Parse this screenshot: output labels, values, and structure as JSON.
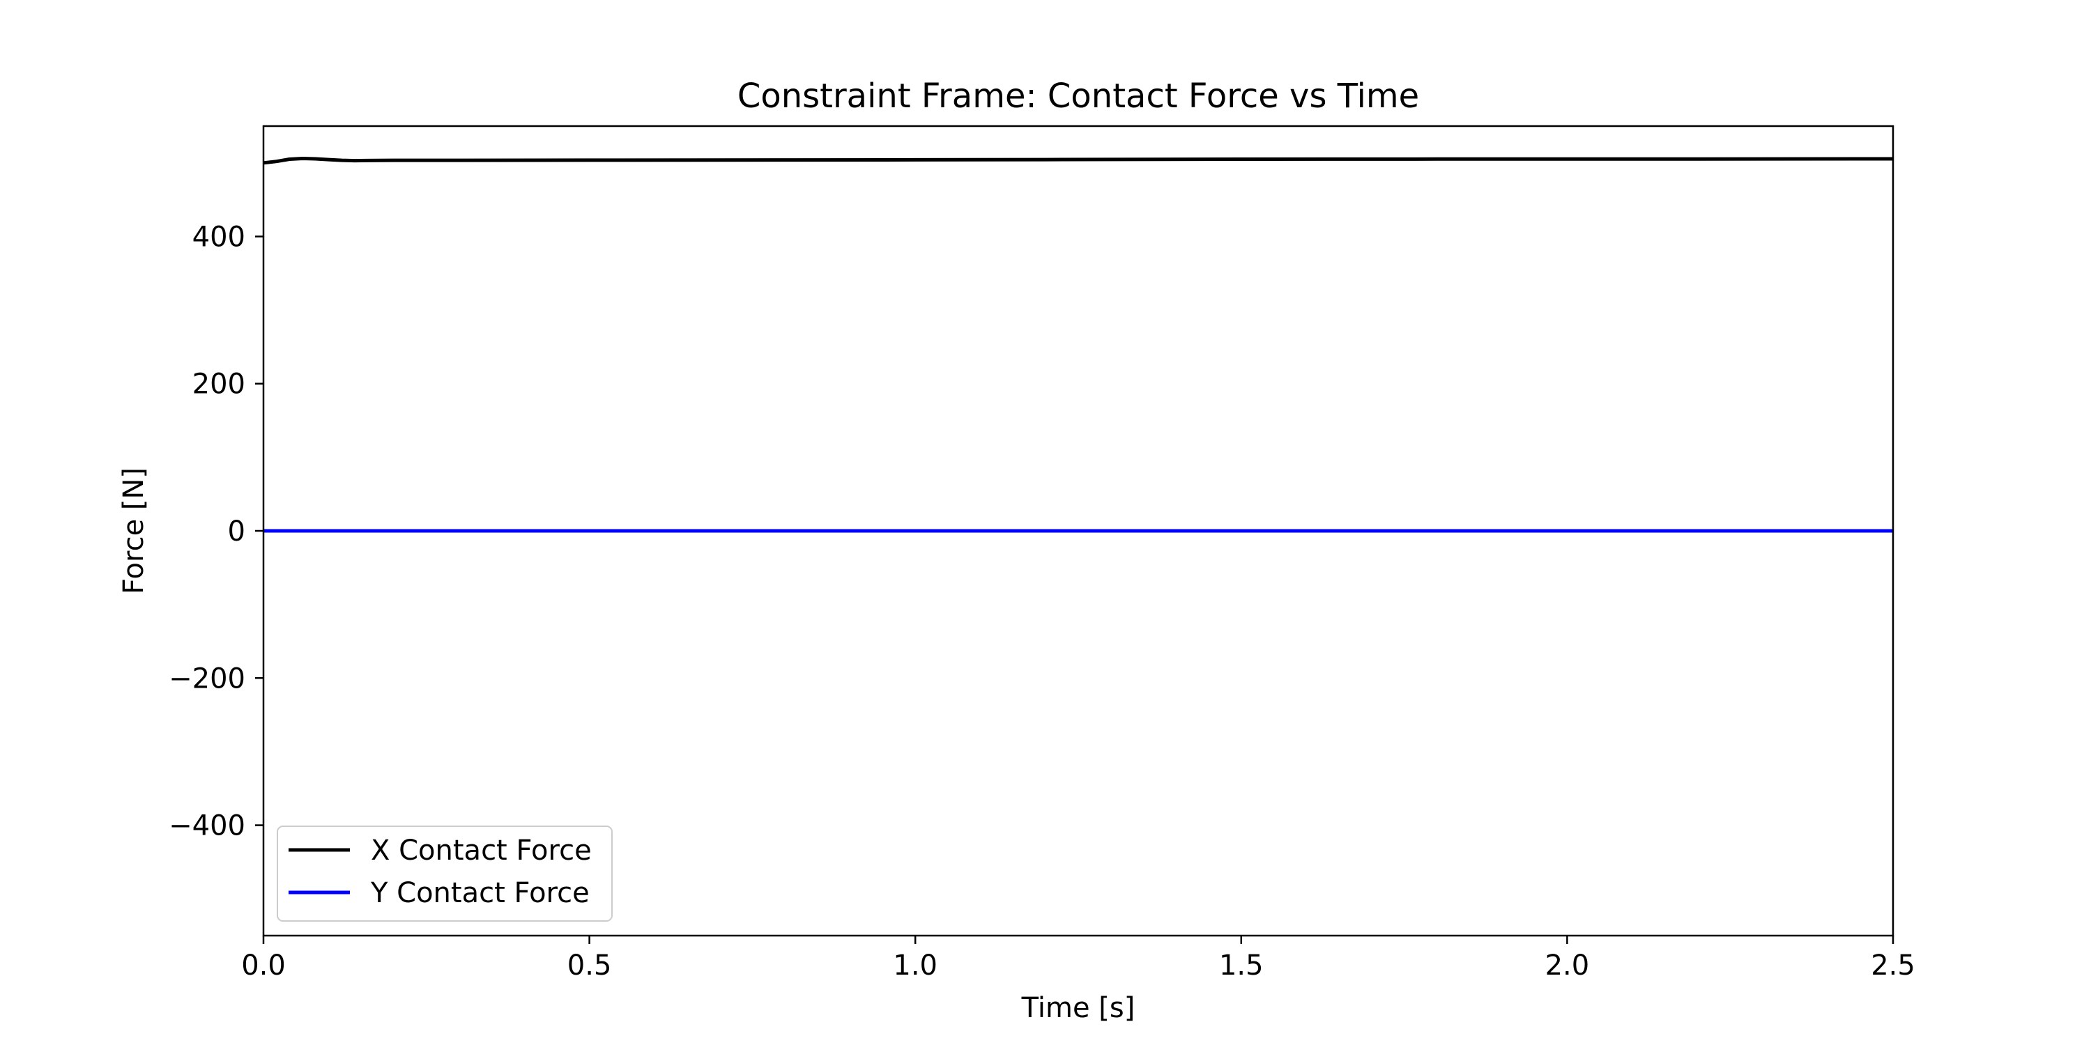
{
  "chart_data": {
    "type": "line",
    "title": "Constraint Frame: Contact Force vs Time",
    "xlabel": "Time [s]",
    "ylabel": "Force [N]",
    "xlim": [
      0,
      2.5
    ],
    "ylim": [
      -550,
      550
    ],
    "xticks": [
      0.0,
      0.5,
      1.0,
      1.5,
      2.0,
      2.5
    ],
    "xtick_labels": [
      "0.0",
      "0.5",
      "1.0",
      "1.5",
      "2.0",
      "2.5"
    ],
    "yticks": [
      -400,
      -200,
      0,
      200,
      400
    ],
    "ytick_labels": [
      "−400",
      "−200",
      "0",
      "200",
      "400"
    ],
    "grid": false,
    "legend_position": "lower-left",
    "series": [
      {
        "name": "X Contact Force",
        "color": "#000000",
        "x": [
          0.0,
          0.02,
          0.04,
          0.06,
          0.08,
          0.1,
          0.12,
          0.14,
          0.16,
          0.2,
          0.3,
          0.5,
          0.8,
          1.0,
          1.2,
          1.5,
          1.8,
          2.0,
          2.2,
          2.5
        ],
        "y": [
          500,
          502,
          505,
          506,
          505.5,
          504.5,
          503.5,
          503,
          503.2,
          503.5,
          503.5,
          503.7,
          504,
          504.2,
          504.5,
          505,
          505.2,
          505.3,
          505.3,
          505.5
        ]
      },
      {
        "name": "Y Contact Force",
        "color": "#0000ff",
        "x": [
          0.0,
          2.5
        ],
        "y": [
          0,
          0
        ]
      }
    ]
  }
}
